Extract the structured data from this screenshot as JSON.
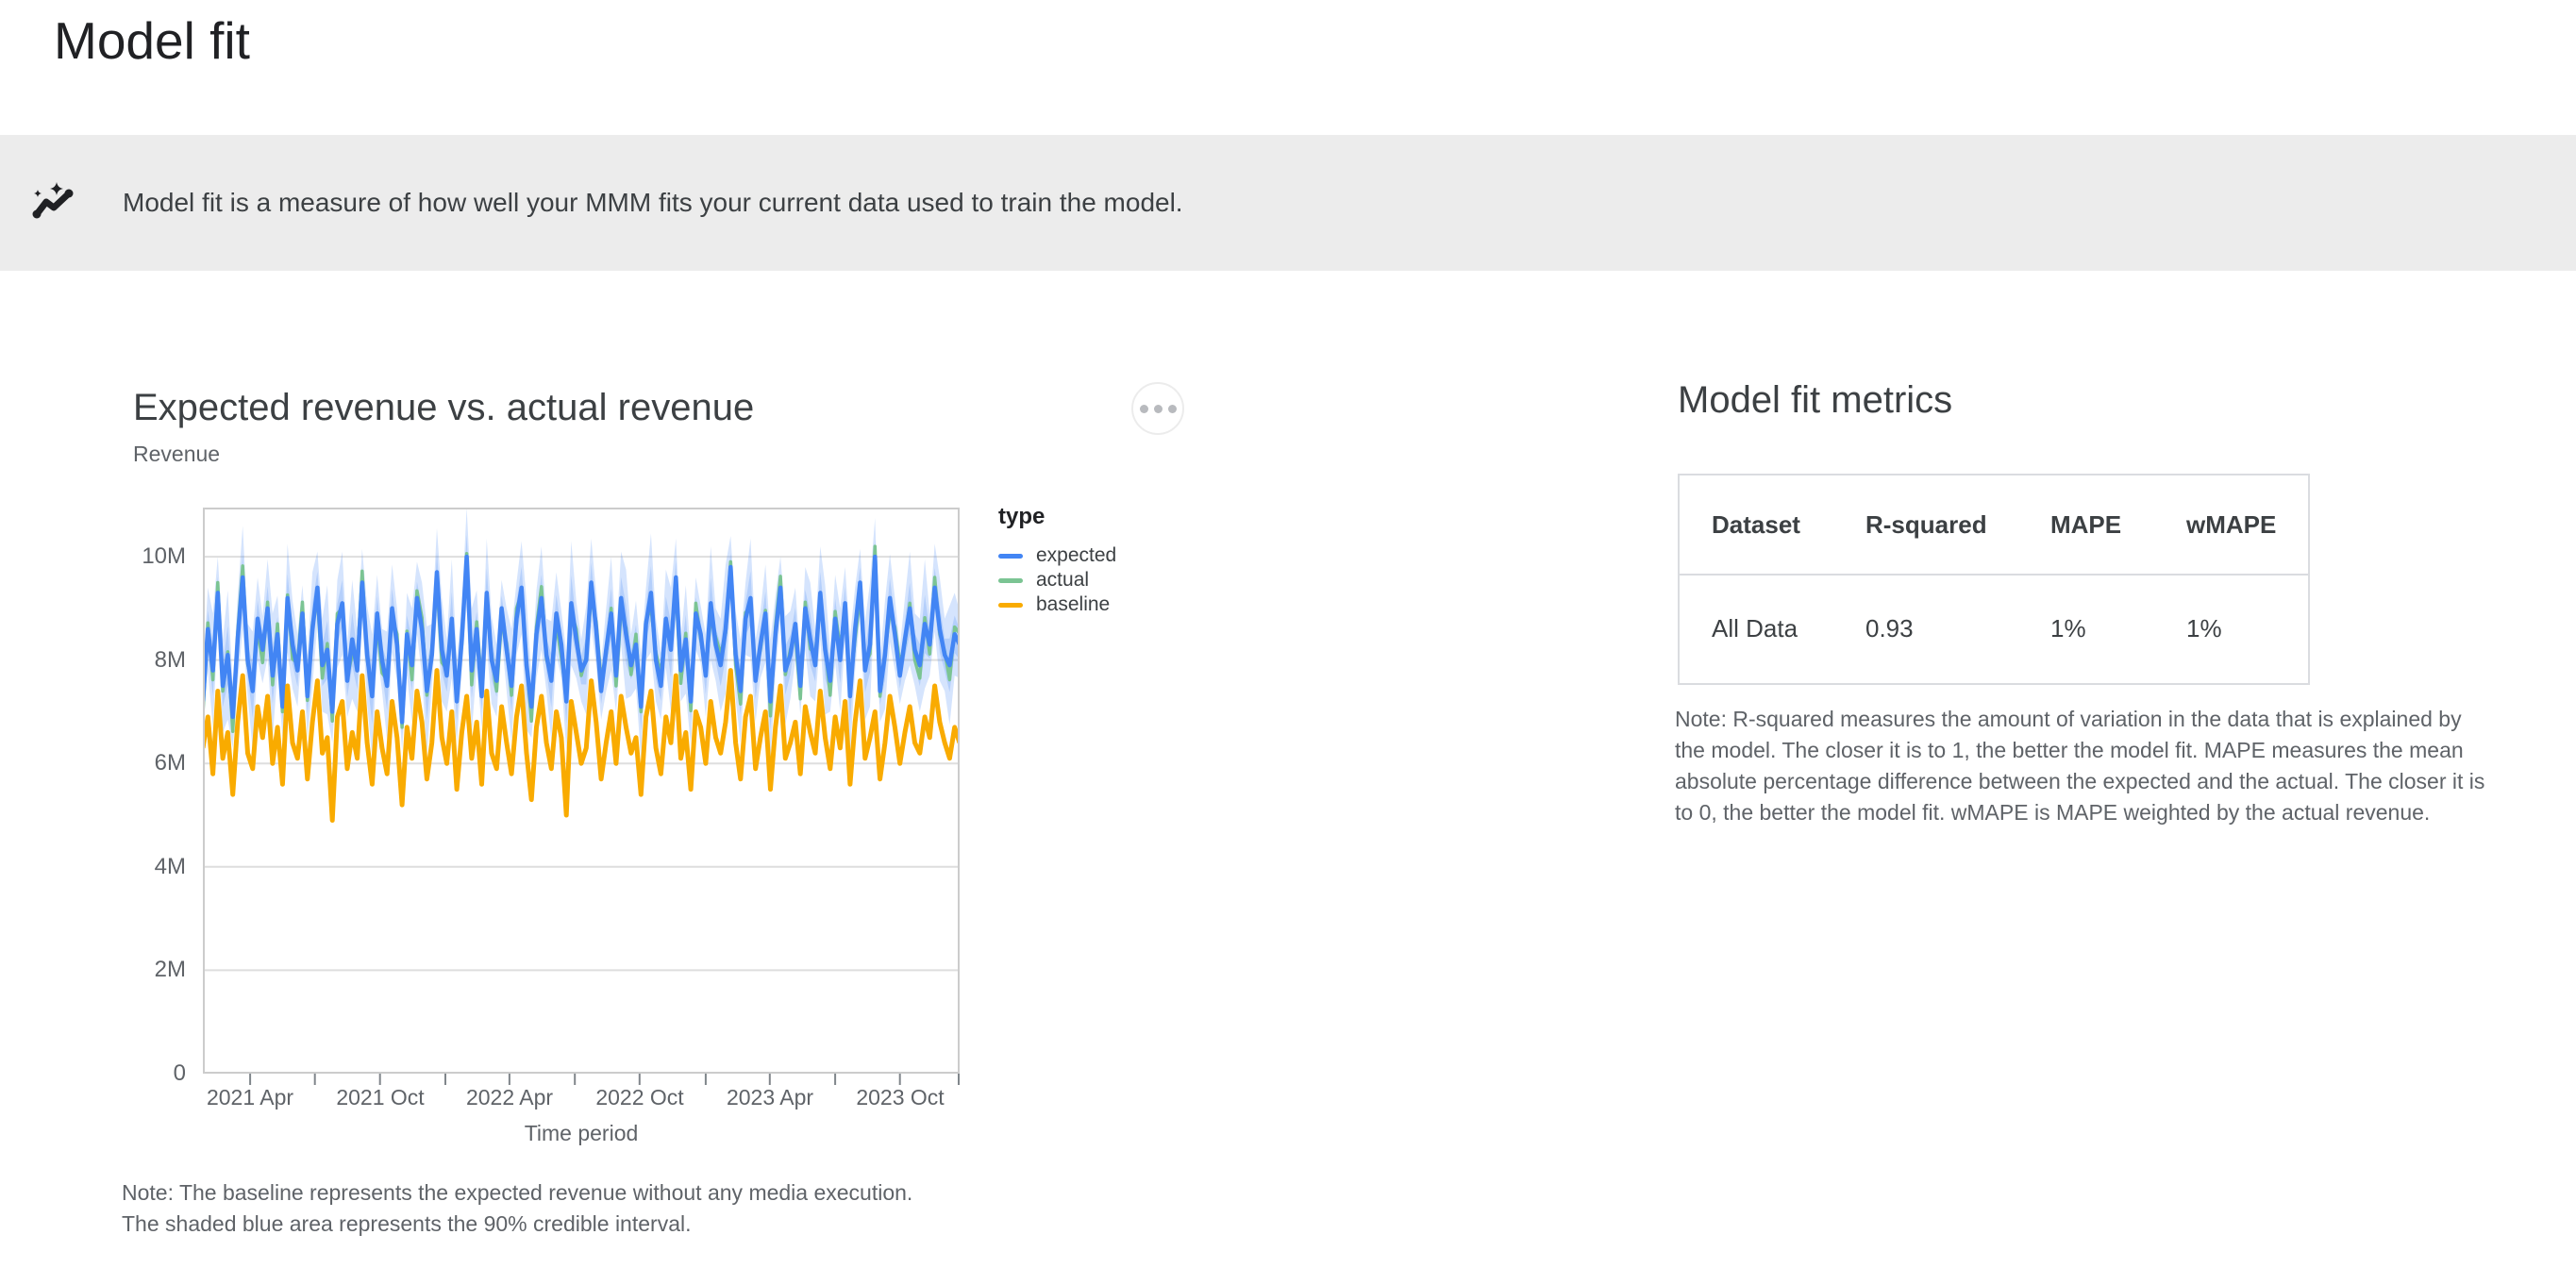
{
  "page": {
    "title": "Model fit"
  },
  "banner": {
    "icon": "trend-sparkle-icon",
    "text": "Model fit is a measure of how well your MMM fits your current data used to train the model."
  },
  "chart_section": {
    "title": "Expected revenue vs. actual revenue",
    "y_axis_title": "Revenue",
    "x_axis_title": "Time period",
    "menu_icon": "more-options",
    "note": "Note: The baseline represents the expected revenue without any media execution.\nThe shaded blue area represents the 90% credible interval."
  },
  "chart_data": {
    "type": "line",
    "title": "Expected revenue vs. actual revenue",
    "xlabel": "Time period",
    "ylabel": "Revenue",
    "x_unit": "weekly points, early 2021 through end of 2023",
    "ylim_millions": [
      0,
      10.95
    ],
    "y_gridlines_millions": [
      2,
      4,
      6,
      8,
      10
    ],
    "y_tick_labels": [
      "0",
      "2M",
      "4M",
      "6M",
      "8M",
      "10M"
    ],
    "x_tick_labels": [
      "2021 Apr",
      "2021 Oct",
      "2022 Apr",
      "2022 Oct",
      "2023 Apr",
      "2023 Oct"
    ],
    "x_tick_weeks": [
      9.5,
      22.5,
      35.57,
      48.71,
      61.57,
      74.71,
      87.71,
      101.0,
      113.86,
      127.0,
      140.0,
      152.0
    ],
    "legend_title": "type",
    "legend_position": "right",
    "grid": true,
    "series": [
      {
        "name": "expected",
        "color": "#4285F4",
        "values_millions": [
          7.2,
          8.6,
          7.8,
          9.3,
          7.5,
          8.1,
          6.9,
          8.4,
          9.6,
          8.0,
          7.4,
          8.8,
          8.2,
          9.0,
          7.7,
          8.5,
          7.1,
          9.2,
          8.3,
          7.8,
          8.9,
          7.3,
          8.6,
          9.4,
          7.9,
          8.2,
          7.0,
          8.7,
          9.1,
          7.6,
          8.4,
          7.8,
          9.5,
          8.1,
          7.3,
          8.9,
          8.0,
          7.5,
          9.0,
          8.3,
          6.8,
          8.5,
          7.9,
          9.2,
          8.6,
          7.4,
          8.1,
          9.7,
          8.2,
          7.7,
          8.8,
          7.2,
          8.4,
          10.0,
          7.8,
          8.6,
          7.3,
          9.3,
          8.0,
          7.6,
          9.0,
          8.2,
          7.5,
          8.8,
          9.4,
          7.9,
          7.1,
          8.5,
          9.2,
          8.1,
          7.6,
          8.9,
          8.3,
          7.2,
          9.1,
          8.4,
          7.8,
          8.0,
          9.5,
          8.6,
          7.4,
          8.2,
          8.9,
          7.7,
          9.2,
          8.5,
          7.9,
          8.3,
          7.1,
          8.7,
          9.3,
          8.0,
          7.5,
          8.8,
          8.2,
          9.6,
          7.8,
          8.4,
          7.2,
          8.9,
          8.5,
          7.7,
          9.1,
          8.3,
          7.9,
          8.6,
          9.8,
          8.1,
          7.4,
          8.8,
          9.2,
          7.6,
          8.3,
          8.9,
          7.2,
          8.5,
          9.4,
          7.8,
          8.1,
          8.7,
          7.5,
          9.0,
          8.4,
          7.9,
          9.3,
          8.2,
          7.6,
          8.8,
          8.0,
          9.1,
          7.3,
          8.6,
          9.5,
          7.8,
          8.3,
          10.0,
          7.4,
          8.1,
          9.2,
          8.5,
          7.7,
          8.4,
          9.0,
          8.2,
          7.9,
          8.7,
          8.3,
          9.4,
          8.6,
          8.1,
          7.9,
          8.5,
          8.3
        ]
      },
      {
        "name": "actual",
        "color": "#7BC493",
        "derivation": "expected plus actual_delta_pattern_millions repeated"
      },
      {
        "name": "baseline",
        "color": "#F9AB00",
        "values_millions": [
          6.3,
          6.9,
          5.8,
          7.4,
          6.1,
          6.6,
          5.4,
          6.8,
          7.7,
          6.2,
          5.9,
          7.1,
          6.5,
          7.3,
          6.0,
          6.7,
          5.6,
          7.5,
          6.4,
          6.1,
          7.0,
          5.7,
          6.8,
          7.6,
          6.2,
          6.5,
          4.9,
          6.9,
          7.2,
          5.9,
          6.6,
          6.1,
          7.7,
          6.4,
          5.6,
          7.0,
          6.3,
          5.8,
          7.2,
          6.5,
          5.2,
          6.7,
          6.1,
          7.4,
          6.8,
          5.7,
          6.4,
          7.8,
          6.5,
          6.0,
          7.0,
          5.5,
          6.6,
          7.3,
          6.1,
          6.8,
          5.6,
          7.4,
          6.2,
          5.9,
          7.1,
          6.4,
          5.8,
          6.9,
          7.5,
          6.2,
          5.3,
          6.7,
          7.3,
          6.4,
          5.9,
          7.0,
          6.5,
          5.0,
          7.2,
          6.6,
          6.0,
          6.3,
          7.6,
          6.8,
          5.7,
          6.4,
          7.0,
          6.0,
          7.3,
          6.7,
          6.2,
          6.5,
          5.4,
          6.9,
          7.4,
          6.3,
          5.8,
          6.9,
          6.4,
          7.7,
          6.1,
          6.6,
          5.5,
          7.0,
          6.7,
          6.0,
          7.2,
          6.5,
          6.2,
          6.8,
          7.8,
          6.4,
          5.7,
          6.9,
          7.3,
          5.9,
          6.5,
          7.0,
          5.5,
          6.7,
          7.5,
          6.1,
          6.4,
          6.8,
          5.8,
          7.1,
          6.6,
          6.2,
          7.4,
          6.5,
          5.9,
          6.9,
          6.3,
          7.2,
          5.6,
          6.8,
          7.6,
          6.1,
          6.5,
          7.0,
          5.7,
          6.4,
          7.3,
          6.7,
          6.0,
          6.6,
          7.1,
          6.4,
          6.2,
          6.9,
          6.5,
          7.5,
          6.8,
          6.4,
          6.1,
          6.7,
          6.4
        ]
      }
    ],
    "actual_delta_pattern_millions": [
      -0.25,
      0.12,
      -0.18,
      0.2,
      -0.1,
      0.06,
      -0.28,
      0.14,
      0.22,
      -0.08,
      0.1,
      -0.2
    ],
    "credible_interval": {
      "level": "90%",
      "around": "expected",
      "halfwidth_pattern_millions": [
        0.55,
        0.8,
        1.1,
        0.7,
        0.9,
        1.25,
        0.6,
        0.85,
        1.0,
        0.7,
        1.15,
        0.8,
        0.65,
        0.95,
        1.2,
        0.75,
        0.6,
        1.05,
        0.85,
        0.7
      ],
      "fill": "#4285F4",
      "opacity": 0.22
    }
  },
  "metrics_section": {
    "title": "Model fit metrics",
    "table": {
      "columns": [
        "Dataset",
        "R-squared",
        "MAPE",
        "wMAPE"
      ],
      "rows": [
        [
          "All Data",
          "0.93",
          "1%",
          "1%"
        ]
      ]
    },
    "note": "Note: R-squared measures the amount of variation in the data that is explained by\nthe model. The closer it is to 1, the better the model fit. MAPE measures the mean\nabsolute percentage difference between the expected and the actual. The closer it is\nto 0, the better the model fit. wMAPE is MAPE weighted by the actual revenue."
  },
  "colors": {
    "banner_background": "#ececec",
    "title_text": "#202124",
    "section_title_text": "#3c4043",
    "muted_text": "#5f6368",
    "table_border": "#dadce0",
    "plot_border": "#cccccc",
    "gridline": "#dedede",
    "tick": "#80868b"
  }
}
